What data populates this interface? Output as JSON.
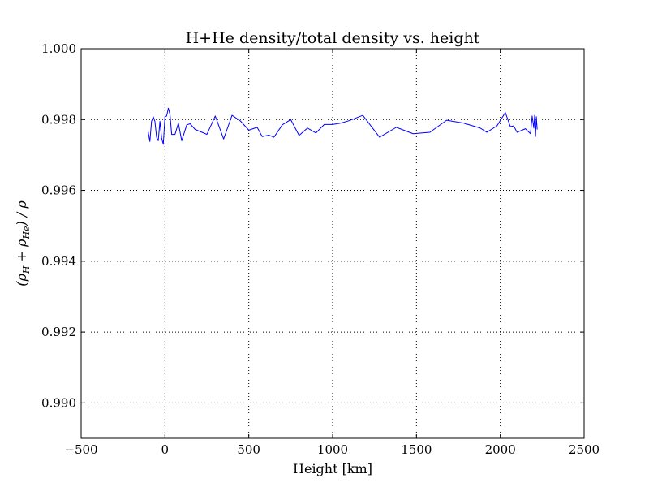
{
  "chart_data": {
    "type": "line",
    "title": "H+He density/total density vs. height",
    "xlabel": "Height [km]",
    "ylabel": "(ρH + ρHe) / ρ",
    "xlim": [
      -500,
      2500
    ],
    "ylim": [
      0.989,
      1.0
    ],
    "xticks": [
      -500,
      0,
      500,
      1000,
      1500,
      2000,
      2500
    ],
    "xtick_labels": [
      "−500",
      "0",
      "500",
      "1000",
      "1500",
      "2000",
      "2500"
    ],
    "yticks": [
      0.99,
      0.992,
      0.994,
      0.996,
      0.998,
      1.0
    ],
    "ytick_labels": [
      "0.990",
      "0.992",
      "0.994",
      "0.996",
      "0.998",
      "1.000"
    ],
    "grid": true,
    "series": [
      {
        "color": "#0000ff",
        "x": [
          -100,
          -90,
          -80,
          -70,
          -60,
          -50,
          -40,
          -30,
          -20,
          -10,
          0,
          10,
          20,
          30,
          40,
          60,
          80,
          100,
          130,
          150,
          180,
          250,
          300,
          350,
          400,
          450,
          500,
          550,
          580,
          620,
          650,
          700,
          750,
          800,
          850,
          900,
          950,
          1000,
          1050,
          1100,
          1180,
          1280,
          1380,
          1480,
          1580,
          1680,
          1780,
          1880,
          1920,
          1980,
          2030,
          2060,
          2080,
          2100,
          2150,
          2180,
          2190,
          2200,
          2205,
          2210,
          2215,
          2220
        ],
        "y": [
          0.99765,
          0.99738,
          0.99795,
          0.99808,
          0.99795,
          0.9975,
          0.9974,
          0.99795,
          0.99748,
          0.9973,
          0.99808,
          0.9981,
          0.99832,
          0.99815,
          0.99758,
          0.99758,
          0.9979,
          0.9974,
          0.99785,
          0.99788,
          0.99772,
          0.99758,
          0.9981,
          0.99745,
          0.99812,
          0.99796,
          0.9977,
          0.99778,
          0.99752,
          0.99756,
          0.9975,
          0.99785,
          0.998,
          0.99755,
          0.99776,
          0.99762,
          0.99786,
          0.99786,
          0.9979,
          0.99797,
          0.99812,
          0.9975,
          0.99778,
          0.9976,
          0.99764,
          0.99798,
          0.9979,
          0.99776,
          0.99764,
          0.99782,
          0.9982,
          0.9978,
          0.99782,
          0.99764,
          0.99774,
          0.9976,
          0.9981,
          0.99776,
          0.99812,
          0.99752,
          0.99808,
          0.99772
        ]
      }
    ]
  }
}
